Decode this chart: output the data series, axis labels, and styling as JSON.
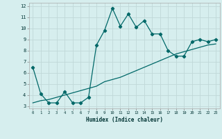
{
  "xlabel": "Humidex (Indice chaleur)",
  "bg_color": "#d6eeee",
  "grid_color": "#b8d8d8",
  "line_color": "#006868",
  "xlim": [
    -0.5,
    23.5
  ],
  "ylim": [
    2.8,
    12.3
  ],
  "yticks": [
    3,
    4,
    5,
    6,
    7,
    8,
    9,
    10,
    11,
    12
  ],
  "xticks": [
    0,
    1,
    2,
    3,
    4,
    5,
    6,
    7,
    8,
    9,
    10,
    11,
    12,
    13,
    14,
    15,
    16,
    17,
    18,
    19,
    20,
    21,
    22,
    23
  ],
  "series1_x": [
    0,
    1,
    2,
    3,
    4,
    5,
    6,
    7,
    8,
    9,
    10,
    11,
    12,
    13,
    14,
    15,
    16,
    17,
    18,
    19,
    20,
    21,
    22,
    23
  ],
  "series1_y": [
    6.5,
    4.1,
    3.3,
    3.3,
    4.3,
    3.3,
    3.3,
    3.8,
    8.5,
    9.8,
    11.8,
    10.2,
    11.3,
    10.1,
    10.7,
    9.5,
    9.5,
    8.0,
    7.5,
    7.5,
    8.8,
    9.0,
    8.8,
    9.0
  ],
  "series2_x": [
    0,
    1,
    2,
    3,
    4,
    5,
    6,
    7,
    8,
    9,
    10,
    11,
    12,
    13,
    14,
    15,
    16,
    17,
    18,
    19,
    20,
    21,
    22,
    23
  ],
  "series2_y": [
    3.3,
    3.5,
    3.6,
    3.8,
    4.0,
    4.2,
    4.4,
    4.6,
    4.8,
    5.2,
    5.4,
    5.6,
    5.9,
    6.2,
    6.5,
    6.8,
    7.1,
    7.4,
    7.7,
    7.9,
    8.1,
    8.3,
    8.5,
    8.6
  ]
}
